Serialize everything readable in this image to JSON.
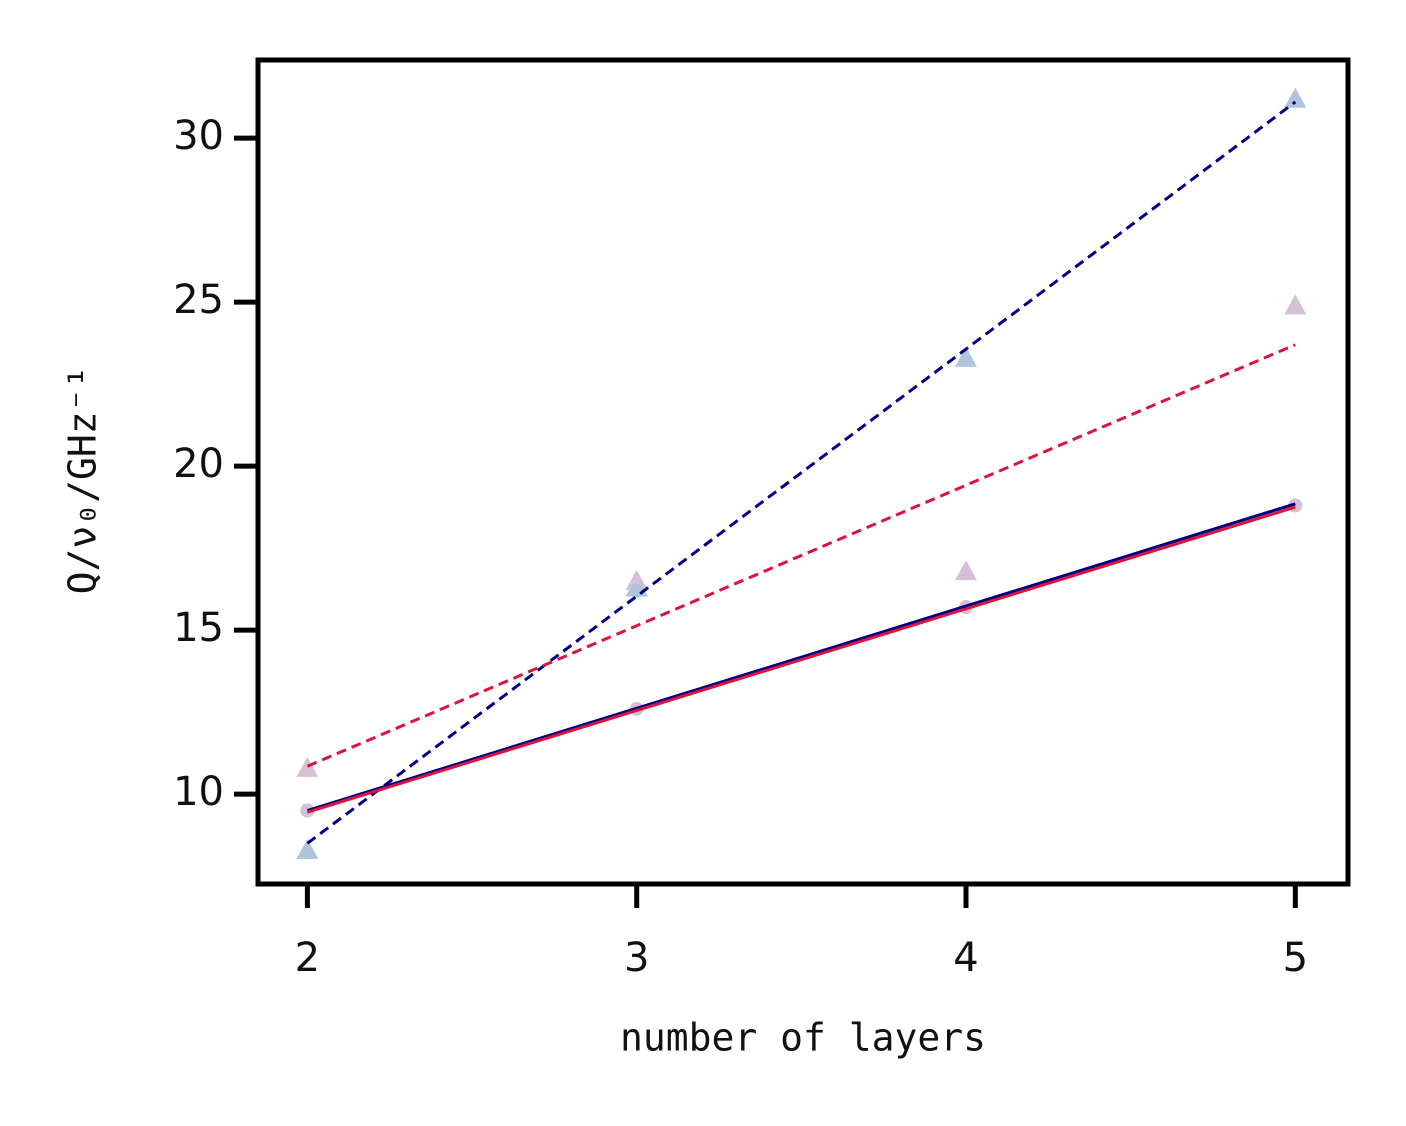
{
  "chart_data": {
    "type": "scatter",
    "x_label": "number of layers",
    "y_label": "Q/ν₀/GHz⁻¹",
    "xlim": [
      1.85,
      5.16
    ],
    "xticks": [
      2,
      3,
      4,
      5
    ],
    "ylim": [
      7.26,
      32.38
    ],
    "yticks": [
      10,
      15,
      20,
      25,
      30
    ],
    "grid": false,
    "series": [
      {
        "color": "#b0c4de",
        "marker": "triangle",
        "x": [
          2,
          3,
          4,
          5
        ],
        "values": [
          8.3,
          16.3,
          23.3,
          31.2
        ]
      },
      {
        "color": "#d8bfd8",
        "marker": "triangle",
        "x": [
          2,
          3,
          4,
          5
        ],
        "values": [
          10.8,
          16.5,
          16.8,
          24.9
        ]
      },
      {
        "color": "#b0c4de",
        "marker": "circle",
        "x": [
          2,
          3,
          4,
          5
        ],
        "values": [
          9.5,
          16.2,
          15.7,
          18.8
        ]
      },
      {
        "color": "#d8bfd8",
        "marker": "circle",
        "x": [
          2,
          3,
          4,
          5
        ],
        "values": [
          9.5,
          12.6,
          15.7,
          18.8
        ]
      },
      {
        "color": "#000080",
        "line": "dashed",
        "x": [
          2,
          5
        ],
        "values": [
          8.5,
          31.1
        ]
      },
      {
        "color": "#dc143c",
        "line": "dashed",
        "x": [
          2,
          5
        ],
        "values": [
          10.85,
          23.7
        ]
      },
      {
        "color": "#000080",
        "line": "solid",
        "x": [
          2,
          5
        ],
        "values": [
          9.5,
          18.85
        ]
      },
      {
        "color": "#dc143c",
        "line": "solid",
        "x": [
          2,
          5
        ],
        "values": [
          9.45,
          18.75
        ]
      }
    ]
  }
}
